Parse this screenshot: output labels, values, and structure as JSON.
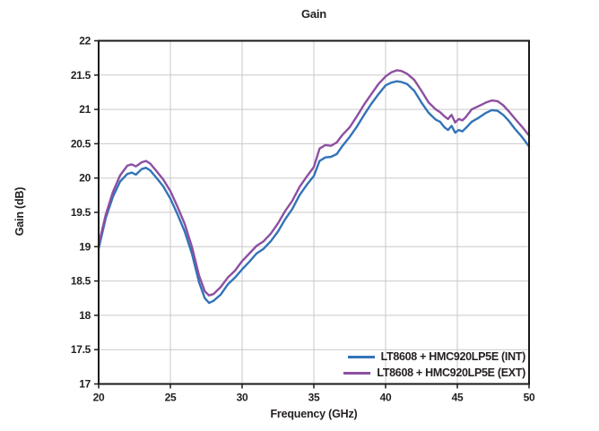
{
  "figure": {
    "title": "Gain"
  },
  "colors": {
    "int_series": "#3273b8",
    "ext_series": "#8d4fa1",
    "grid": "#c9c9c9",
    "axis_frame": "#1a1a1a",
    "text": "#231f20",
    "background": "#ffffff"
  },
  "chart_data": {
    "type": "line",
    "title": "Gain",
    "xlabel": "Frequency (GHz)",
    "ylabel": "Gain (dB)",
    "xlim": [
      20,
      50
    ],
    "ylim": [
      17,
      22
    ],
    "xticks": [
      20,
      25,
      30,
      35,
      40,
      45,
      50
    ],
    "yticks": [
      17,
      17.5,
      18,
      18.5,
      19,
      19.5,
      20,
      20.5,
      21,
      21.5,
      22
    ],
    "grid": true,
    "legend_position": "bottom-right",
    "x": [
      20,
      20.5,
      21,
      21.5,
      22,
      22.3,
      22.6,
      23,
      23.3,
      23.6,
      24,
      24.5,
      25,
      25.5,
      26,
      26.5,
      27,
      27.4,
      27.7,
      28,
      28.5,
      29,
      29.5,
      30,
      30.5,
      31,
      31.5,
      32,
      32.5,
      33,
      33.5,
      34,
      34.5,
      35,
      35.4,
      35.8,
      36.2,
      36.6,
      37,
      37.5,
      38,
      38.5,
      39,
      39.5,
      40,
      40.4,
      40.8,
      41.1,
      41.5,
      42,
      42.5,
      43,
      43.5,
      43.8,
      44.1,
      44.35,
      44.6,
      44.85,
      45.1,
      45.35,
      45.6,
      46,
      46.5,
      47,
      47.4,
      47.8,
      48.2,
      48.6,
      49,
      49.5,
      50
    ],
    "series": [
      {
        "name": "LT8608 + HMC920LP5E (INT)",
        "color": "#3273b8",
        "values": [
          18.97,
          19.42,
          19.73,
          19.95,
          20.06,
          20.08,
          20.05,
          20.13,
          20.15,
          20.11,
          20.01,
          19.88,
          19.7,
          19.47,
          19.22,
          18.9,
          18.48,
          18.25,
          18.18,
          18.21,
          18.3,
          18.45,
          18.55,
          18.67,
          18.78,
          18.9,
          18.97,
          19.08,
          19.22,
          19.4,
          19.55,
          19.75,
          19.9,
          20.03,
          20.25,
          20.3,
          20.31,
          20.35,
          20.47,
          20.6,
          20.75,
          20.92,
          21.08,
          21.22,
          21.35,
          21.39,
          21.41,
          21.4,
          21.37,
          21.27,
          21.1,
          20.95,
          20.85,
          20.82,
          20.74,
          20.7,
          20.76,
          20.66,
          20.7,
          20.68,
          20.73,
          20.82,
          20.88,
          20.95,
          20.99,
          20.98,
          20.92,
          20.83,
          20.72,
          20.6,
          20.46
        ]
      },
      {
        "name": "LT8608 + HMC920LP5E (EXT)",
        "color": "#8d4fa1",
        "values": [
          19.03,
          19.47,
          19.8,
          20.04,
          20.18,
          20.2,
          20.17,
          20.23,
          20.25,
          20.21,
          20.11,
          19.98,
          19.81,
          19.58,
          19.33,
          19.0,
          18.58,
          18.35,
          18.29,
          18.31,
          18.41,
          18.55,
          18.65,
          18.79,
          18.9,
          19.01,
          19.08,
          19.19,
          19.34,
          19.52,
          19.67,
          19.87,
          20.02,
          20.16,
          20.43,
          20.48,
          20.47,
          20.52,
          20.63,
          20.74,
          20.9,
          21.07,
          21.22,
          21.37,
          21.48,
          21.54,
          21.57,
          21.56,
          21.52,
          21.43,
          21.27,
          21.1,
          21.0,
          20.96,
          20.9,
          20.86,
          20.92,
          20.81,
          20.86,
          20.84,
          20.89,
          21.0,
          21.05,
          21.1,
          21.13,
          21.12,
          21.06,
          20.97,
          20.87,
          20.75,
          20.62
        ]
      }
    ]
  }
}
